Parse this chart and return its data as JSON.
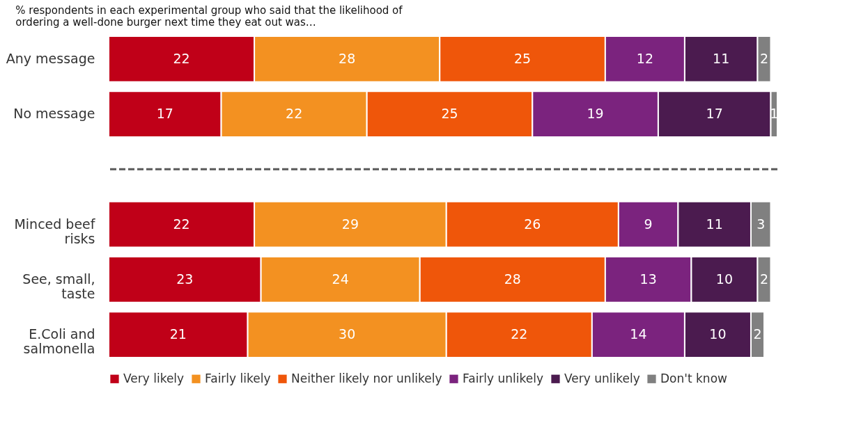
{
  "chart_data": {
    "type": "bar",
    "orientation": "horizontal",
    "stacked": true,
    "data_labels": true,
    "legend": "bottom",
    "subtitle": "% respondents in each experimental group who said that the likelihood of ordering a well-done burger next time they eat out was…",
    "categories": [
      "Any message",
      "No message",
      null,
      "Minced beef risks",
      "See, small, taste",
      "E.Coli and salmonella"
    ],
    "ref_lines": [
      {
        "axis": "y",
        "value": null,
        "line_style": "dashed",
        "color": "#595959"
      }
    ],
    "series": [
      {
        "name": "Very likely",
        "color": "#c00018",
        "values": [
          22,
          17,
          null,
          22,
          23,
          21
        ]
      },
      {
        "name": "Fairly likely",
        "color": "#f39121",
        "values": [
          28,
          22,
          null,
          29,
          24,
          30
        ]
      },
      {
        "name": "Neither likely nor unlikely",
        "color": "#ef560a",
        "values": [
          25,
          25,
          null,
          26,
          28,
          22
        ]
      },
      {
        "name": "Fairly unlikely",
        "color": "#7b237e",
        "values": [
          12,
          19,
          null,
          9,
          13,
          14
        ]
      },
      {
        "name": "Very unlikely",
        "color": "#4b1b4f",
        "values": [
          11,
          17,
          null,
          11,
          10,
          10
        ]
      },
      {
        "name": "Don't know",
        "color": "#808080",
        "values": [
          2,
          1,
          null,
          3,
          2,
          2
        ]
      }
    ]
  }
}
